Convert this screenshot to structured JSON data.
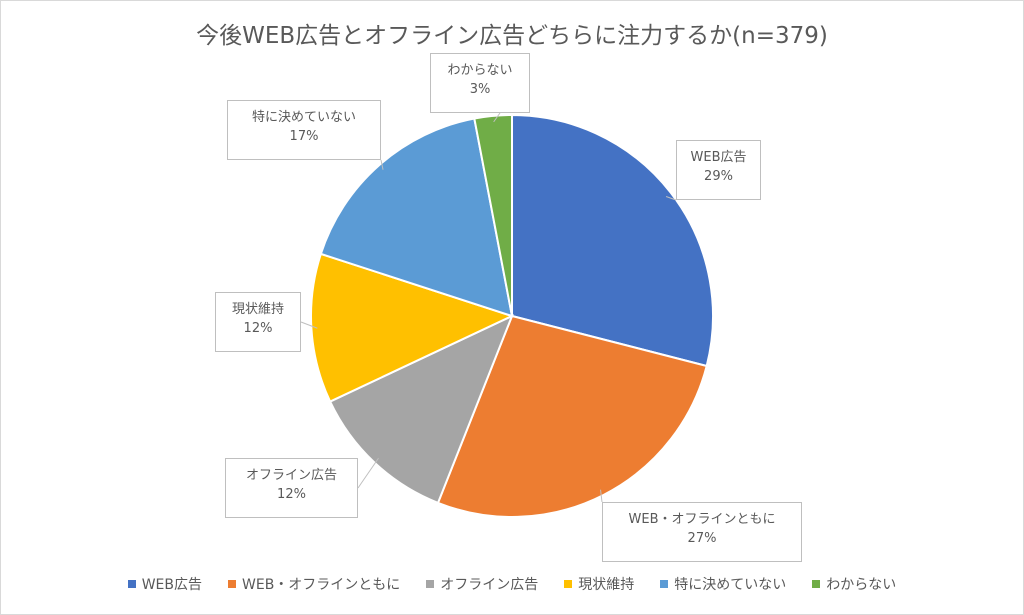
{
  "chart_data": {
    "type": "pie",
    "title": "今後WEB広告とオフライン広告どちらに注力するか(n=379)",
    "categories": [
      "WEB広告",
      "WEB・オフラインともに",
      "オフライン広告",
      "現状維持",
      "特に決めていない",
      "わからない"
    ],
    "values": [
      29,
      27,
      12,
      12,
      17,
      3
    ],
    "value_labels": [
      "29%",
      "27%",
      "12%",
      "12%",
      "17%",
      "3%"
    ],
    "colors": [
      "#4472C4",
      "#ED7D31",
      "#A5A5A5",
      "#FFC000",
      "#5B9BD5",
      "#70AD47"
    ],
    "legend_position": "bottom",
    "data_label_style": "callout"
  }
}
